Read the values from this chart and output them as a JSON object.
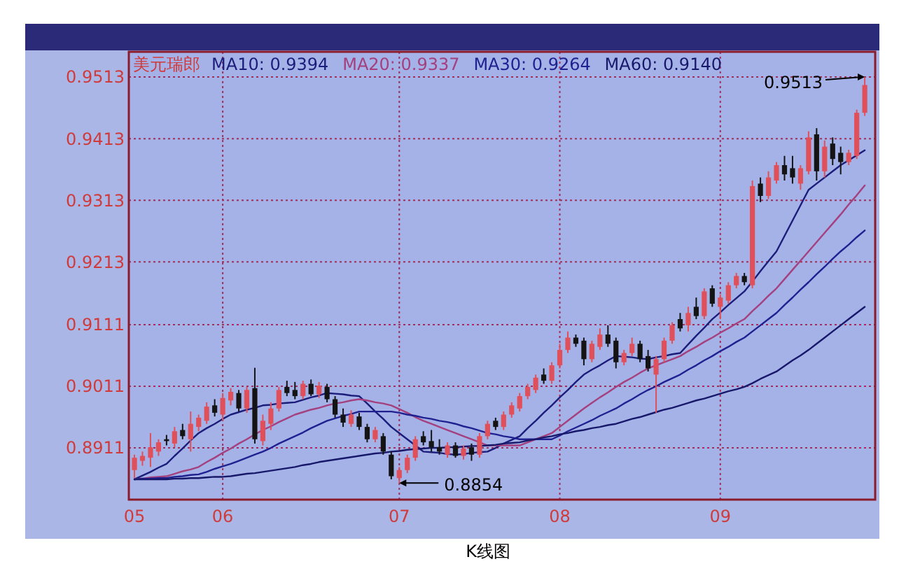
{
  "chart_data": {
    "type": "candlestick",
    "title": "美元瑞郎",
    "categories": [
      "05",
      null,
      null,
      null,
      null,
      null,
      null,
      null,
      null,
      null,
      null,
      "06",
      null,
      null,
      null,
      null,
      null,
      null,
      null,
      null,
      null,
      null,
      null,
      null,
      null,
      null,
      null,
      null,
      null,
      null,
      null,
      null,
      null,
      "07",
      null,
      null,
      null,
      null,
      null,
      null,
      null,
      null,
      null,
      null,
      null,
      null,
      null,
      null,
      null,
      null,
      null,
      null,
      null,
      "08",
      null,
      null,
      null,
      null,
      null,
      null,
      null,
      null,
      null,
      null,
      null,
      null,
      null,
      null,
      null,
      null,
      null,
      null,
      null,
      "09",
      null,
      null,
      null,
      null,
      null,
      null,
      null,
      null,
      null,
      null,
      null,
      null,
      null,
      null,
      null,
      null,
      null,
      null
    ],
    "ohlc": [
      [
        0.8875,
        0.89,
        0.8862,
        0.8895
      ],
      [
        0.889,
        0.8905,
        0.8882,
        0.8898
      ],
      [
        0.8895,
        0.8935,
        0.888,
        0.8912
      ],
      [
        0.8905,
        0.8925,
        0.8898,
        0.892
      ],
      [
        0.8925,
        0.8932,
        0.8915,
        0.8922
      ],
      [
        0.8918,
        0.8945,
        0.8912,
        0.8938
      ],
      [
        0.894,
        0.895,
        0.8925,
        0.893
      ],
      [
        0.8925,
        0.897,
        0.8905,
        0.895
      ],
      [
        0.8945,
        0.8965,
        0.8938,
        0.896
      ],
      [
        0.8955,
        0.8985,
        0.895,
        0.8978
      ],
      [
        0.898,
        0.899,
        0.8962,
        0.8968
      ],
      [
        0.8965,
        0.9,
        0.8955,
        0.8992
      ],
      [
        0.8988,
        0.9008,
        0.898,
        0.9002
      ],
      [
        0.9,
        0.9005,
        0.897,
        0.8975
      ],
      [
        0.8975,
        0.901,
        0.8968,
        0.9005
      ],
      [
        0.9008,
        0.9041,
        0.8918,
        0.8925
      ],
      [
        0.8922,
        0.8965,
        0.8915,
        0.8955
      ],
      [
        0.895,
        0.8985,
        0.894,
        0.8975
      ],
      [
        0.8975,
        0.901,
        0.897,
        0.9005
      ],
      [
        0.901,
        0.902,
        0.8995,
        0.9
      ],
      [
        0.9005,
        0.9018,
        0.899,
        0.8995
      ],
      [
        0.8995,
        0.902,
        0.899,
        0.9015
      ],
      [
        0.9015,
        0.9022,
        0.8995,
        0.8998
      ],
      [
        0.8998,
        0.9018,
        0.8992,
        0.9012
      ],
      [
        0.901,
        0.9015,
        0.8985,
        0.899
      ],
      [
        0.899,
        0.8995,
        0.896,
        0.8965
      ],
      [
        0.8965,
        0.8975,
        0.8945,
        0.8952
      ],
      [
        0.895,
        0.8972,
        0.8945,
        0.8965
      ],
      [
        0.8962,
        0.8968,
        0.894,
        0.8945
      ],
      [
        0.8945,
        0.895,
        0.892,
        0.8925
      ],
      [
        0.8925,
        0.8945,
        0.892,
        0.894
      ],
      [
        0.893,
        0.8935,
        0.89,
        0.8905
      ],
      [
        0.89,
        0.8905,
        0.886,
        0.8865
      ],
      [
        0.8862,
        0.888,
        0.8854,
        0.8875
      ],
      [
        0.8875,
        0.89,
        0.887,
        0.8895
      ],
      [
        0.8895,
        0.893,
        0.889,
        0.8925
      ],
      [
        0.893,
        0.8938,
        0.8915,
        0.892
      ],
      [
        0.8922,
        0.894,
        0.8905,
        0.8912
      ],
      [
        0.8912,
        0.8925,
        0.89,
        0.8905
      ],
      [
        0.89,
        0.892,
        0.8895,
        0.8915
      ],
      [
        0.8915,
        0.892,
        0.8895,
        0.8898
      ],
      [
        0.8898,
        0.8915,
        0.8892,
        0.891
      ],
      [
        0.8912,
        0.8918,
        0.889,
        0.89
      ],
      [
        0.89,
        0.8935,
        0.8895,
        0.893
      ],
      [
        0.893,
        0.8955,
        0.8925,
        0.895
      ],
      [
        0.8955,
        0.896,
        0.894,
        0.8945
      ],
      [
        0.8945,
        0.897,
        0.894,
        0.8965
      ],
      [
        0.8965,
        0.8985,
        0.896,
        0.898
      ],
      [
        0.8975,
        0.9,
        0.897,
        0.8995
      ],
      [
        0.8995,
        0.9015,
        0.899,
        0.901
      ],
      [
        0.9005,
        0.903,
        0.9,
        0.9025
      ],
      [
        0.903,
        0.904,
        0.9015,
        0.902
      ],
      [
        0.902,
        0.905,
        0.9015,
        0.9045
      ],
      [
        0.9045,
        0.908,
        0.904,
        0.907
      ],
      [
        0.907,
        0.91,
        0.9065,
        0.909
      ],
      [
        0.909,
        0.9095,
        0.9075,
        0.908
      ],
      [
        0.9085,
        0.909,
        0.9045,
        0.9055
      ],
      [
        0.9055,
        0.9085,
        0.905,
        0.908
      ],
      [
        0.9075,
        0.9105,
        0.907,
        0.9095
      ],
      [
        0.9095,
        0.911,
        0.9075,
        0.908
      ],
      [
        0.9085,
        0.909,
        0.904,
        0.905
      ],
      [
        0.905,
        0.907,
        0.9045,
        0.9065
      ],
      [
        0.9065,
        0.909,
        0.906,
        0.908
      ],
      [
        0.908,
        0.9085,
        0.905,
        0.9055
      ],
      [
        0.906,
        0.907,
        0.9035,
        0.904
      ],
      [
        0.903,
        0.906,
        0.8968,
        0.9055
      ],
      [
        0.9055,
        0.909,
        0.905,
        0.9085
      ],
      [
        0.9085,
        0.9115,
        0.908,
        0.911
      ],
      [
        0.912,
        0.913,
        0.91,
        0.9105
      ],
      [
        0.911,
        0.914,
        0.91,
        0.913
      ],
      [
        0.914,
        0.9155,
        0.912,
        0.9125
      ],
      [
        0.9125,
        0.917,
        0.912,
        0.9165
      ],
      [
        0.917,
        0.9175,
        0.914,
        0.9145
      ],
      [
        0.914,
        0.916,
        0.912,
        0.9155
      ],
      [
        0.915,
        0.918,
        0.9145,
        0.9175
      ],
      [
        0.9175,
        0.9195,
        0.917,
        0.919
      ],
      [
        0.919,
        0.9195,
        0.9175,
        0.918
      ],
      [
        0.9175,
        0.9345,
        0.917,
        0.9336
      ],
      [
        0.934,
        0.935,
        0.931,
        0.932
      ],
      [
        0.932,
        0.936,
        0.9315,
        0.935
      ],
      [
        0.9345,
        0.9375,
        0.934,
        0.937
      ],
      [
        0.937,
        0.9385,
        0.9345,
        0.9355
      ],
      [
        0.9365,
        0.9385,
        0.934,
        0.935
      ],
      [
        0.934,
        0.937,
        0.933,
        0.9365
      ],
      [
        0.936,
        0.9425,
        0.9355,
        0.9415
      ],
      [
        0.942,
        0.943,
        0.9345,
        0.936
      ],
      [
        0.936,
        0.941,
        0.935,
        0.94
      ],
      [
        0.9405,
        0.9415,
        0.937,
        0.938
      ],
      [
        0.939,
        0.94,
        0.9355,
        0.9375
      ],
      [
        0.9375,
        0.9395,
        0.937,
        0.939
      ],
      [
        0.9385,
        0.946,
        0.938,
        0.9455
      ],
      [
        0.9455,
        0.9513,
        0.945,
        0.95
      ]
    ],
    "colors": [
      "#e0505a",
      "#e0505a",
      "#e0505a",
      "#e0505a",
      "#141414",
      "#e0505a",
      "#141414",
      "#e0505a",
      "#e0505a",
      "#e0505a",
      "#141414",
      "#e0505a",
      "#e0505a",
      "#141414",
      "#e0505a",
      "#141414",
      "#e0505a",
      "#e0505a",
      "#e0505a",
      "#141414",
      "#141414",
      "#e0505a",
      "#141414",
      "#e0505a",
      "#141414",
      "#141414",
      "#141414",
      "#e0505a",
      "#141414",
      "#141414",
      "#e0505a",
      "#141414",
      "#141414",
      "#e0505a",
      "#e0505a",
      "#e0505a",
      "#141414",
      "#141414",
      "#141414",
      "#e0505a",
      "#141414",
      "#e0505a",
      "#141414",
      "#e0505a",
      "#e0505a",
      "#141414",
      "#e0505a",
      "#e0505a",
      "#e0505a",
      "#e0505a",
      "#e0505a",
      "#141414",
      "#e0505a",
      "#e0505a",
      "#e0505a",
      "#141414",
      "#141414",
      "#e0505a",
      "#e0505a",
      "#141414",
      "#141414",
      "#e0505a",
      "#e0505a",
      "#141414",
      "#141414",
      "#e0505a",
      "#e0505a",
      "#e0505a",
      "#141414",
      "#e0505a",
      "#141414",
      "#e0505a",
      "#141414",
      "#e0505a",
      "#e0505a",
      "#e0505a",
      "#141414",
      "#e0505a",
      "#141414",
      "#e0505a",
      "#e0505a",
      "#141414",
      "#141414",
      "#e0505a",
      "#e0505a",
      "#141414",
      "#e0505a",
      "#141414",
      "#141414",
      "#e0505a",
      "#e0505a",
      "#e0505a"
    ],
    "series": [
      {
        "type": "line",
        "name": "MA10: 0.9394",
        "color": "#1c1c7a",
        "values": [
          0.886,
          0.8866,
          0.8872,
          0.8879,
          0.8885,
          0.8898,
          0.891,
          0.8923,
          0.8935,
          0.8943,
          0.895,
          0.8958,
          0.8965,
          0.8969,
          0.8973,
          0.8976,
          0.898,
          0.8981,
          0.8983,
          0.8984,
          0.8985,
          0.8989,
          0.8993,
          0.8996,
          0.9,
          0.8999,
          0.8998,
          0.8996,
          0.8995,
          0.8983,
          0.897,
          0.8958,
          0.8945,
          0.8935,
          0.8925,
          0.8915,
          0.8905,
          0.8904,
          0.8903,
          0.8901,
          0.89,
          0.8901,
          0.8903,
          0.8904,
          0.8905,
          0.8911,
          0.8918,
          0.8924,
          0.893,
          0.8943,
          0.8955,
          0.8968,
          0.898,
          0.8993,
          0.9005,
          0.9018,
          0.903,
          0.9038,
          0.9045,
          0.9053,
          0.906,
          0.9059,
          0.9058,
          0.9056,
          0.9055,
          0.9058,
          0.906,
          0.9063,
          0.9065,
          0.9079,
          0.9093,
          0.9106,
          0.912,
          0.9131,
          0.9143,
          0.9154,
          0.9165,
          0.9181,
          0.9198,
          0.9214,
          0.923,
          0.9255,
          0.928,
          0.9305,
          0.933,
          0.934,
          0.935,
          0.936,
          0.937,
          0.9378,
          0.9386,
          0.9394
        ]
      },
      {
        "type": "line",
        "name": "MA20: 0.9337",
        "color": "#a4407e",
        "values": [
          0.886,
          0.8861,
          0.8863,
          0.8864,
          0.8865,
          0.8869,
          0.8873,
          0.8876,
          0.888,
          0.8888,
          0.8895,
          0.8903,
          0.891,
          0.8918,
          0.8925,
          0.8933,
          0.894,
          0.8946,
          0.8953,
          0.8959,
          0.8965,
          0.8969,
          0.8973,
          0.8976,
          0.898,
          0.8983,
          0.8985,
          0.8988,
          0.899,
          0.8988,
          0.8985,
          0.8983,
          0.898,
          0.8974,
          0.8968,
          0.8961,
          0.8955,
          0.895,
          0.8945,
          0.894,
          0.8935,
          0.893,
          0.8925,
          0.892,
          0.8915,
          0.8915,
          0.8915,
          0.8915,
          0.8915,
          0.892,
          0.8925,
          0.893,
          0.8935,
          0.8945,
          0.8955,
          0.8965,
          0.8975,
          0.8984,
          0.8993,
          0.9001,
          0.901,
          0.9018,
          0.9025,
          0.9033,
          0.904,
          0.9045,
          0.905,
          0.9055,
          0.906,
          0.9068,
          0.9075,
          0.9083,
          0.909,
          0.9098,
          0.9105,
          0.9113,
          0.912,
          0.9133,
          0.9145,
          0.9158,
          0.917,
          0.9185,
          0.92,
          0.9215,
          0.923,
          0.9245,
          0.926,
          0.9275,
          0.929,
          0.9306,
          0.9321,
          0.9337
        ]
      },
      {
        "type": "line",
        "name": "MA30: 0.9264",
        "color": "#202090",
        "values": [
          0.886,
          0.8861,
          0.8861,
          0.8862,
          0.8862,
          0.8864,
          0.8865,
          0.8867,
          0.8868,
          0.8872,
          0.8877,
          0.8881,
          0.8885,
          0.889,
          0.8895,
          0.89,
          0.8905,
          0.8911,
          0.8918,
          0.8924,
          0.893,
          0.8936,
          0.8943,
          0.8949,
          0.8955,
          0.8959,
          0.8963,
          0.8966,
          0.897,
          0.897,
          0.897,
          0.897,
          0.897,
          0.8968,
          0.8965,
          0.8963,
          0.896,
          0.8958,
          0.8955,
          0.8953,
          0.895,
          0.8946,
          0.8943,
          0.8939,
          0.8935,
          0.8933,
          0.893,
          0.8928,
          0.8925,
          0.8925,
          0.8925,
          0.8925,
          0.8925,
          0.8931,
          0.8938,
          0.8944,
          0.895,
          0.8956,
          0.8963,
          0.8969,
          0.8975,
          0.8983,
          0.899,
          0.8998,
          0.9005,
          0.9011,
          0.9018,
          0.9024,
          0.903,
          0.9038,
          0.9045,
          0.9053,
          0.906,
          0.9068,
          0.9075,
          0.9083,
          0.909,
          0.91,
          0.911,
          0.912,
          0.913,
          0.9143,
          0.9155,
          0.9168,
          0.918,
          0.9193,
          0.9205,
          0.9218,
          0.923,
          0.9241,
          0.9253,
          0.9264
        ]
      },
      {
        "type": "line",
        "name": "MA60: 0.9140",
        "color": "#18186a",
        "values": [
          0.886,
          0.886,
          0.886,
          0.886,
          0.886,
          0.8861,
          0.8861,
          0.8862,
          0.8862,
          0.8863,
          0.8864,
          0.8864,
          0.8865,
          0.8867,
          0.8869,
          0.887,
          0.8872,
          0.8874,
          0.8876,
          0.8878,
          0.888,
          0.8883,
          0.8885,
          0.8888,
          0.889,
          0.8892,
          0.8894,
          0.8896,
          0.8898,
          0.89,
          0.8902,
          0.8903,
          0.8905,
          0.8906,
          0.8908,
          0.8909,
          0.891,
          0.8911,
          0.8911,
          0.8912,
          0.8912,
          0.8913,
          0.8914,
          0.8914,
          0.8915,
          0.8916,
          0.8918,
          0.8919,
          0.892,
          0.8923,
          0.8925,
          0.8928,
          0.893,
          0.8933,
          0.8935,
          0.8938,
          0.894,
          0.8943,
          0.8945,
          0.8948,
          0.895,
          0.8954,
          0.8958,
          0.8961,
          0.8965,
          0.8969,
          0.8973,
          0.8976,
          0.898,
          0.8984,
          0.8988,
          0.8991,
          0.8995,
          0.8999,
          0.9003,
          0.9006,
          0.901,
          0.9016,
          0.9023,
          0.9029,
          0.9035,
          0.9044,
          0.9053,
          0.9061,
          0.907,
          0.908,
          0.909,
          0.91,
          0.911,
          0.912,
          0.913,
          0.914
        ]
      }
    ],
    "ylim": [
      0.8827,
      0.9554
    ],
    "yticks": [
      0.8911,
      0.9011,
      0.9111,
      0.9213,
      0.9313,
      0.9413,
      0.9513
    ],
    "grid": true,
    "line_style": "solid",
    "legend": "top left",
    "annotations": [
      "0.9513",
      "0.8854",
      "K线图"
    ]
  }
}
